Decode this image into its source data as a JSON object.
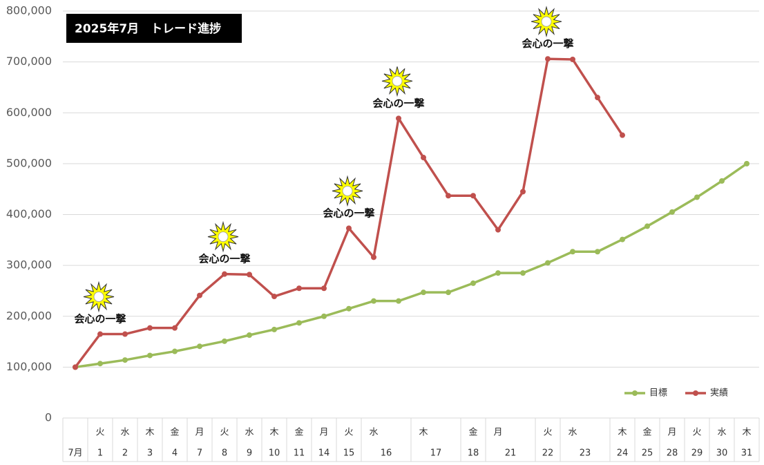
{
  "chart_data": {
    "type": "line",
    "title": "2025年7月　トレード進捗",
    "categories": [
      null,
      "火",
      "水",
      "木",
      "金",
      "月",
      "火",
      "水",
      "木",
      "金",
      "月",
      "火",
      "水",
      null,
      "木",
      null,
      "金",
      "月",
      null,
      "火",
      "水",
      null,
      "木",
      "金",
      "月",
      "火",
      "水",
      "木"
    ],
    "dates": [
      "7月",
      "1",
      "2",
      "3",
      "4",
      "7",
      "8",
      "9",
      "10",
      "11",
      "14",
      "15",
      "16",
      null,
      "17",
      null,
      "18",
      "21",
      null,
      "22",
      "23",
      null,
      "24",
      "25",
      "28",
      "29",
      "30",
      "31"
    ],
    "series": [
      {
        "name": "目標",
        "color": "#9bbb59",
        "values": [
          100000,
          107000,
          114000,
          123000,
          131000,
          141000,
          151000,
          163000,
          174000,
          187000,
          200000,
          215000,
          230000,
          230000,
          247000,
          247000,
          265000,
          285000,
          285000,
          305000,
          327000,
          327000,
          351000,
          377000,
          405000,
          434000,
          466000,
          500000
        ]
      },
      {
        "name": "実績",
        "color": "#c0504d",
        "values": [
          100000,
          165000,
          165000,
          177000,
          177000,
          241000,
          283000,
          282000,
          239000,
          255000,
          255000,
          373000,
          316000,
          589000,
          512000,
          437000,
          437000,
          370000,
          445000,
          706000,
          705000,
          630000,
          556000,
          null,
          null,
          null,
          null,
          null
        ]
      }
    ],
    "annotations": [
      {
        "text": "会心の一撃",
        "index": 1
      },
      {
        "text": "会心の一撃",
        "index": 6
      },
      {
        "text": "会心の一撃",
        "index": 11
      },
      {
        "text": "会心の一撃",
        "index": 13
      },
      {
        "text": "会心の一撃",
        "index": 19
      }
    ],
    "ylim": [
      0,
      800000
    ],
    "yticks": [
      0,
      {
        "value": 100000,
        "label": "100,000"
      },
      {
        "value": 200000,
        "label": "200,000"
      },
      {
        "value": 300000,
        "label": "300,000"
      },
      {
        "value": 400000,
        "label": "400,000"
      },
      {
        "value": 500000,
        "label": "500,000"
      },
      {
        "value": 600000,
        "label": "600,000"
      },
      {
        "value": 700000,
        "label": "700,000"
      },
      {
        "value": 800000,
        "label": "800,000"
      }
    ],
    "grid": true,
    "legend": "lower right"
  }
}
